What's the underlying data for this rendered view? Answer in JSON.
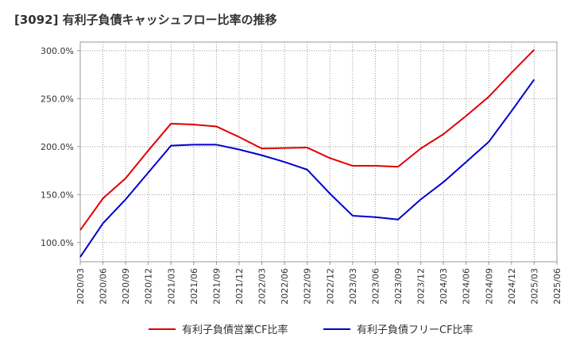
{
  "chart_data": {
    "type": "line",
    "title": "[3092]  有利子負債キャッシュフロー比率の推移",
    "xlabel": "",
    "ylabel": "",
    "categories": [
      "2020/03",
      "2020/06",
      "2020/09",
      "2020/12",
      "2021/03",
      "2021/06",
      "2021/09",
      "2021/12",
      "2022/03",
      "2022/06",
      "2022/09",
      "2022/12",
      "2023/03",
      "2023/06",
      "2023/09",
      "2023/12",
      "2024/03",
      "2024/06",
      "2024/09",
      "2024/12",
      "2025/03",
      "2025/06"
    ],
    "ylim": [
      80,
      309
    ],
    "yticks": [
      100,
      150,
      200,
      250,
      300
    ],
    "ytick_labels": [
      "100.0%",
      "150.0%",
      "200.0%",
      "250.0%",
      "300.0%"
    ],
    "grid": true,
    "legend_position": "bottom",
    "series": [
      {
        "name": "有利子負債営業CF比率",
        "color": "#e00000",
        "values": [
          113,
          146,
          167,
          196,
          224,
          223,
          221,
          210,
          198,
          198.5,
          199,
          188,
          180,
          180,
          179,
          198,
          213,
          232,
          252,
          277,
          301,
          null
        ]
      },
      {
        "name": "有利子負債フリーCF比率",
        "color": "#0000cc",
        "values": [
          85,
          120,
          145,
          173,
          201,
          202,
          202,
          197,
          191,
          184,
          176,
          151,
          128,
          126.5,
          124,
          145,
          163,
          184,
          205,
          237,
          270,
          null
        ]
      }
    ]
  }
}
